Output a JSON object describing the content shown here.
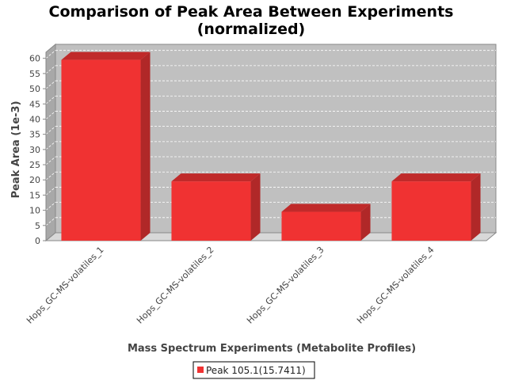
{
  "chart_data": {
    "type": "bar",
    "title": "Comparison of Peak Area Between Experiments",
    "subtitle": "(normalized)",
    "xlabel": "Mass Spectrum Experiments (Metabolite Profiles)",
    "ylabel": "Peak Area (1e-3)",
    "categories": [
      "Hops_GC-MS-volatiles_1",
      "Hops_GC-MS-volatiles_2",
      "Hops_GC-MS-volatiles_3",
      "Hops_GC-MS-volatiles_4"
    ],
    "series": [
      {
        "name": "Peak 105.1(15.7411)",
        "values": [
          59.5,
          19.5,
          9.5,
          19.5
        ],
        "color": "#f03232"
      }
    ],
    "ylim": [
      0,
      62
    ],
    "yticks": [
      0,
      5,
      10,
      15,
      20,
      25,
      30,
      35,
      40,
      45,
      50,
      55,
      60
    ],
    "grid": true,
    "legend_position": "bottom",
    "style": "3d",
    "plot_background": "#c0c0c0"
  }
}
